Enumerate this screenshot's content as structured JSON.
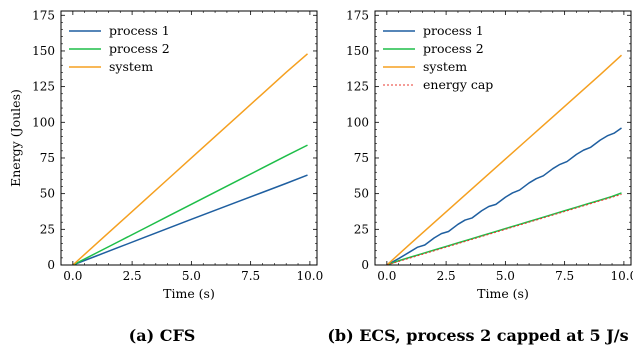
{
  "chart_data": [
    {
      "type": "line",
      "caption": "(a) CFS",
      "xlabel": "Time (s)",
      "ylabel": "Energy (Joules)",
      "xlim": [
        -0.5,
        10.3
      ],
      "ylim": [
        0,
        178
      ],
      "xticks": [
        0.0,
        2.5,
        5.0,
        7.5,
        10.0
      ],
      "xtick_labels": [
        "0.0",
        "2.5",
        "5.0",
        "7.5",
        "10.0"
      ],
      "yticks": [
        0,
        25,
        50,
        75,
        100,
        125,
        150,
        175
      ],
      "ytick_labels": [
        "0",
        "25",
        "50",
        "75",
        "100",
        "125",
        "150",
        "175"
      ],
      "legend_position": "top-left",
      "series": [
        {
          "name": "process 1",
          "color": "#1f5fa0",
          "dash": "",
          "x": [
            0.0,
            1.0,
            2.0,
            3.0,
            4.0,
            5.0,
            6.0,
            7.0,
            8.0,
            9.0,
            9.9
          ],
          "y": [
            0,
            6.4,
            12.8,
            19.2,
            25.6,
            32.0,
            38.3,
            44.6,
            50.9,
            57.2,
            63
          ]
        },
        {
          "name": "process 2",
          "color": "#1ebe49",
          "dash": "",
          "x": [
            0.0,
            1.0,
            2.0,
            3.0,
            4.0,
            5.0,
            6.0,
            7.0,
            8.0,
            9.0,
            9.9
          ],
          "y": [
            0,
            8.5,
            17.0,
            25.5,
            34.0,
            42.5,
            51.0,
            59.5,
            68.0,
            76.5,
            84
          ]
        },
        {
          "name": "system",
          "color": "#f5a020",
          "dash": "",
          "x": [
            0.0,
            1.0,
            2.0,
            3.0,
            4.0,
            5.0,
            6.0,
            7.0,
            8.0,
            9.0,
            9.9
          ],
          "y": [
            0,
            15.0,
            30.0,
            45.0,
            60.0,
            75.0,
            90.0,
            105.0,
            120.0,
            135.0,
            148
          ]
        }
      ]
    },
    {
      "type": "line",
      "caption": "(b) ECS, process 2 capped at 5 J/s",
      "xlabel": "Time (s)",
      "ylabel": "",
      "xlim": [
        -0.5,
        10.3
      ],
      "ylim": [
        0,
        178
      ],
      "xticks": [
        0.0,
        2.5,
        5.0,
        7.5,
        10.0
      ],
      "xtick_labels": [
        "0.0",
        "2.5",
        "5.0",
        "7.5",
        "10.0"
      ],
      "yticks": [
        0,
        25,
        50,
        75,
        100,
        125,
        150,
        175
      ],
      "ytick_labels": [
        "0",
        "25",
        "50",
        "75",
        "100",
        "125",
        "150",
        "175"
      ],
      "legend_position": "top-left",
      "series": [
        {
          "name": "process 1",
          "color": "#1f5fa0",
          "dash": "",
          "x": [
            0.0,
            0.5,
            1.0,
            1.3,
            1.6,
            2.0,
            2.3,
            2.6,
            3.0,
            3.3,
            3.6,
            4.0,
            4.3,
            4.6,
            5.0,
            5.3,
            5.6,
            6.0,
            6.3,
            6.6,
            7.0,
            7.3,
            7.6,
            8.0,
            8.3,
            8.6,
            9.0,
            9.3,
            9.6,
            9.9
          ],
          "y": [
            0,
            4.5,
            9.5,
            12.5,
            14.0,
            19.0,
            22.0,
            23.5,
            28.5,
            31.5,
            33.0,
            38.0,
            41.0,
            42.5,
            47.5,
            50.5,
            52.5,
            57.5,
            60.5,
            62.5,
            67.5,
            70.5,
            72.5,
            77.5,
            80.5,
            82.5,
            87.5,
            90.5,
            92.5,
            96
          ]
        },
        {
          "name": "process 2",
          "color": "#1ebe49",
          "dash": "",
          "x": [
            0.0,
            0.5,
            1.0,
            1.5,
            2.0,
            2.5,
            3.0,
            3.5,
            4.0,
            4.5,
            5.0,
            5.5,
            6.0,
            6.5,
            7.0,
            7.5,
            8.0,
            8.5,
            9.0,
            9.5,
            9.9
          ],
          "y": [
            0,
            3.0,
            5.5,
            8.0,
            10.5,
            13.0,
            15.5,
            18.0,
            20.5,
            23.0,
            25.5,
            28.0,
            30.5,
            33.0,
            35.5,
            38.0,
            40.5,
            43.0,
            45.5,
            48.0,
            50.5
          ]
        },
        {
          "name": "system",
          "color": "#f5a020",
          "dash": "",
          "x": [
            0.0,
            1.0,
            2.0,
            3.0,
            4.0,
            5.0,
            6.0,
            7.0,
            8.0,
            9.0,
            9.9
          ],
          "y": [
            0,
            15.0,
            29.8,
            44.6,
            59.4,
            74.2,
            89.0,
            103.8,
            118.6,
            133.4,
            147
          ]
        },
        {
          "name": "energy cap",
          "color": "#e8392f",
          "dash": "2,2",
          "x": [
            0.0,
            9.9
          ],
          "y": [
            0,
            49.5
          ]
        }
      ]
    }
  ]
}
